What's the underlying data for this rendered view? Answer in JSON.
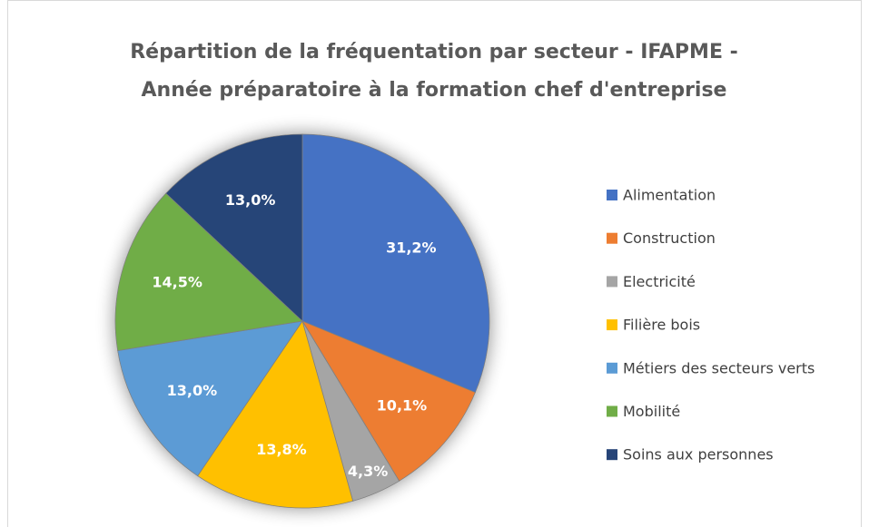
{
  "chart_data": {
    "type": "pie",
    "title": [
      "Répartition de la fréquentation par secteur - IFAPME -",
      "Année préparatoire à la formation chef d'entreprise"
    ],
    "categories": [
      "Alimentation",
      "Construction",
      "Electricité",
      "Filière bois",
      "Métiers des secteurs verts",
      "Mobilité",
      "Soins aux personnes"
    ],
    "values": [
      31.2,
      10.1,
      4.3,
      13.8,
      13.0,
      14.5,
      13.0
    ],
    "value_labels": [
      "31,2%",
      "10,1%",
      "4,3%",
      "13,8%",
      "13,0%",
      "14,5%",
      "13,0%"
    ],
    "colors": [
      "#4472c4",
      "#ed7d31",
      "#a5a5a5",
      "#ffc000",
      "#5b9bd5",
      "#70ad47",
      "#264478"
    ],
    "legend": "right"
  }
}
